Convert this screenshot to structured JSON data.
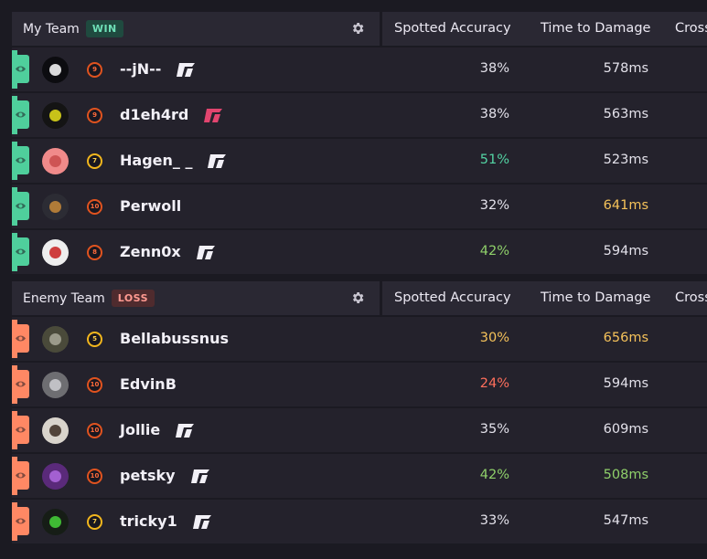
{
  "columns": [
    "Spotted Accuracy",
    "Time to Damage",
    "Cross"
  ],
  "my_team": {
    "title": "My Team",
    "badge": "WIN",
    "players": [
      {
        "name": "--jN--",
        "rank": "9",
        "rank_color": "orange",
        "spotted": "38%",
        "spotted_color": "default",
        "ttd": "578ms",
        "ttd_color": "default",
        "tag": "white"
      },
      {
        "name": "d1eh4rd",
        "rank": "9",
        "rank_color": "orange",
        "spotted": "38%",
        "spotted_color": "default",
        "ttd": "563ms",
        "ttd_color": "default",
        "tag": "pink"
      },
      {
        "name": "Hagen_ _",
        "rank": "7",
        "rank_color": "yellow",
        "spotted": "51%",
        "spotted_color": "green",
        "ttd": "523ms",
        "ttd_color": "default",
        "tag": "white"
      },
      {
        "name": "Perwoll",
        "rank": "10",
        "rank_color": "orange",
        "spotted": "32%",
        "spotted_color": "default",
        "ttd": "641ms",
        "ttd_color": "yellow",
        "tag": "none"
      },
      {
        "name": "Zenn0x",
        "rank": "8",
        "rank_color": "orange",
        "spotted": "42%",
        "spotted_color": "lgreen",
        "ttd": "594ms",
        "ttd_color": "default",
        "tag": "white"
      }
    ]
  },
  "enemy_team": {
    "title": "Enemy Team",
    "badge": "LOSS",
    "players": [
      {
        "name": "Bellabussnus",
        "rank": "5",
        "rank_color": "yellow",
        "spotted": "30%",
        "spotted_color": "yellow",
        "ttd": "656ms",
        "ttd_color": "yellow",
        "tag": "none"
      },
      {
        "name": "EdvinB",
        "rank": "10",
        "rank_color": "orange",
        "spotted": "24%",
        "spotted_color": "red",
        "ttd": "594ms",
        "ttd_color": "default",
        "tag": "none"
      },
      {
        "name": "Jollie",
        "rank": "10",
        "rank_color": "orange",
        "spotted": "35%",
        "spotted_color": "default",
        "ttd": "609ms",
        "ttd_color": "default",
        "tag": "white"
      },
      {
        "name": "petsky",
        "rank": "10",
        "rank_color": "orange",
        "spotted": "42%",
        "spotted_color": "lgreen",
        "ttd": "508ms",
        "ttd_color": "lgreen",
        "tag": "white"
      },
      {
        "name": "tricky1",
        "rank": "7",
        "rank_color": "yellow",
        "spotted": "33%",
        "spotted_color": "default",
        "ttd": "547ms",
        "ttd_color": "default",
        "tag": "white"
      }
    ]
  },
  "colors": {
    "team_accent": "#4fcf9c",
    "enemy_accent": "#ff8864",
    "win_badge": "#1f4a3f",
    "loss_badge": "#4f2b2e"
  },
  "icons": {
    "settings": "gear-icon",
    "visibility": "eye-icon",
    "rank": "rank-badge-icon",
    "tag": "faceit-logo-icon"
  }
}
